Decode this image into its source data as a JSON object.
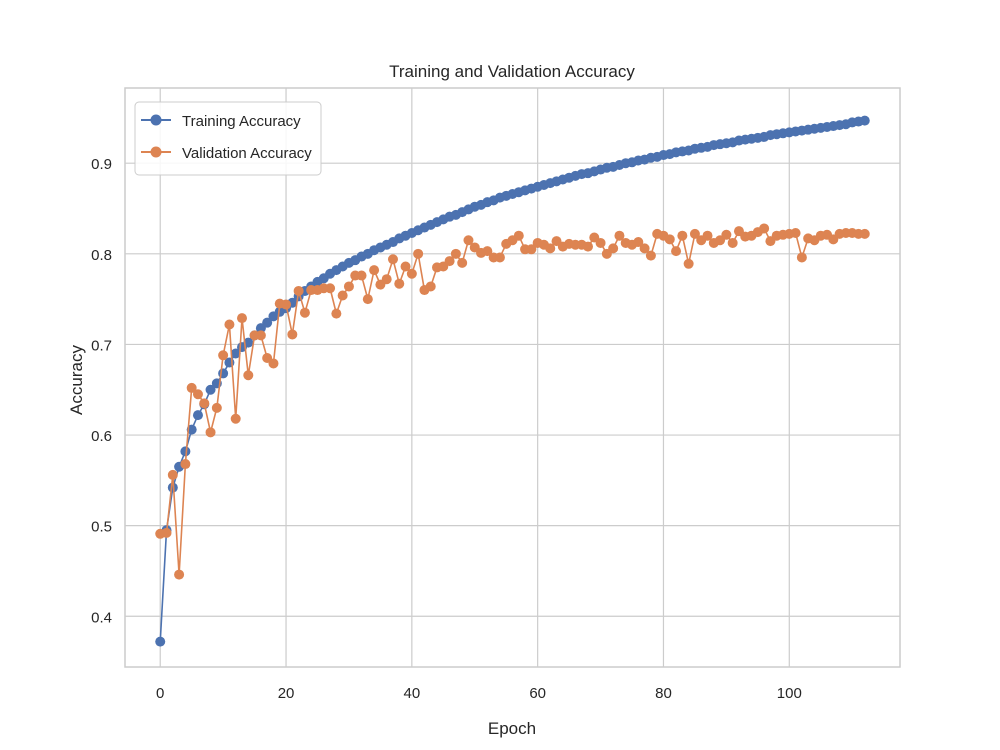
{
  "chart_data": {
    "type": "line",
    "title": "Training and Validation Accuracy",
    "xlabel": "Epoch",
    "ylabel": "Accuracy",
    "xlim": [
      -5.6,
      117.6
    ],
    "ylim": [
      0.344,
      0.983
    ],
    "xticks": [
      0,
      20,
      40,
      60,
      80,
      100
    ],
    "yticks": [
      0.4,
      0.5,
      0.6,
      0.7,
      0.8,
      0.9
    ],
    "grid": true,
    "legend_position": "upper-left",
    "colors": {
      "training": "#4c72b0",
      "validation": "#dd8452",
      "grid": "#cccccc",
      "frame": "#cccccc"
    },
    "series": [
      {
        "name": "Training Accuracy",
        "x": [
          0,
          1,
          2,
          3,
          4,
          5,
          6,
          7,
          8,
          9,
          10,
          11,
          12,
          13,
          14,
          15,
          16,
          17,
          18,
          19,
          20,
          21,
          22,
          23,
          24,
          25,
          26,
          27,
          28,
          29,
          30,
          31,
          32,
          33,
          34,
          35,
          36,
          37,
          38,
          39,
          40,
          41,
          42,
          43,
          44,
          45,
          46,
          47,
          48,
          49,
          50,
          51,
          52,
          53,
          54,
          55,
          56,
          57,
          58,
          59,
          60,
          61,
          62,
          63,
          64,
          65,
          66,
          67,
          68,
          69,
          70,
          71,
          72,
          73,
          74,
          75,
          76,
          77,
          78,
          79,
          80,
          81,
          82,
          83,
          84,
          85,
          86,
          87,
          88,
          89,
          90,
          91,
          92,
          93,
          94,
          95,
          96,
          97,
          98,
          99,
          100,
          101,
          102,
          103,
          104,
          105,
          106,
          107,
          108,
          109,
          110,
          111,
          112
        ],
        "y": [
          0.372,
          0.495,
          0.542,
          0.565,
          0.582,
          0.606,
          0.622,
          0.634,
          0.65,
          0.657,
          0.668,
          0.68,
          0.69,
          0.697,
          0.702,
          0.71,
          0.718,
          0.724,
          0.731,
          0.736,
          0.74,
          0.746,
          0.753,
          0.759,
          0.764,
          0.769,
          0.773,
          0.778,
          0.782,
          0.786,
          0.79,
          0.793,
          0.797,
          0.8,
          0.804,
          0.807,
          0.81,
          0.813,
          0.817,
          0.82,
          0.823,
          0.826,
          0.829,
          0.832,
          0.835,
          0.838,
          0.841,
          0.843,
          0.846,
          0.849,
          0.852,
          0.854,
          0.857,
          0.859,
          0.862,
          0.864,
          0.866,
          0.868,
          0.87,
          0.872,
          0.874,
          0.876,
          0.878,
          0.88,
          0.882,
          0.884,
          0.886,
          0.888,
          0.889,
          0.891,
          0.893,
          0.895,
          0.896,
          0.898,
          0.9,
          0.901,
          0.903,
          0.904,
          0.906,
          0.907,
          0.909,
          0.91,
          0.912,
          0.913,
          0.914,
          0.916,
          0.917,
          0.918,
          0.92,
          0.921,
          0.922,
          0.923,
          0.925,
          0.926,
          0.927,
          0.928,
          0.929,
          0.931,
          0.932,
          0.933,
          0.934,
          0.935,
          0.936,
          0.937,
          0.938,
          0.939,
          0.94,
          0.941,
          0.942,
          0.943,
          0.945,
          0.946,
          0.947
        ]
      },
      {
        "name": "Validation Accuracy",
        "x": [
          0,
          1,
          2,
          3,
          4,
          5,
          6,
          7,
          8,
          9,
          10,
          11,
          12,
          13,
          14,
          15,
          16,
          17,
          18,
          19,
          20,
          21,
          22,
          23,
          24,
          25,
          26,
          27,
          28,
          29,
          30,
          31,
          32,
          33,
          34,
          35,
          36,
          37,
          38,
          39,
          40,
          41,
          42,
          43,
          44,
          45,
          46,
          47,
          48,
          49,
          50,
          51,
          52,
          53,
          54,
          55,
          56,
          57,
          58,
          59,
          60,
          61,
          62,
          63,
          64,
          65,
          66,
          67,
          68,
          69,
          70,
          71,
          72,
          73,
          74,
          75,
          76,
          77,
          78,
          79,
          80,
          81,
          82,
          83,
          84,
          85,
          86,
          87,
          88,
          89,
          90,
          91,
          92,
          93,
          94,
          95,
          96,
          97,
          98,
          99,
          100,
          101,
          102,
          103,
          104,
          105,
          106,
          107,
          108,
          109,
          110,
          111,
          112
        ],
        "y": [
          0.491,
          0.492,
          0.556,
          0.446,
          0.568,
          0.652,
          0.645,
          0.635,
          0.603,
          0.63,
          0.688,
          0.722,
          0.618,
          0.729,
          0.666,
          0.71,
          0.71,
          0.685,
          0.679,
          0.745,
          0.744,
          0.711,
          0.759,
          0.735,
          0.76,
          0.76,
          0.762,
          0.762,
          0.734,
          0.754,
          0.764,
          0.776,
          0.776,
          0.75,
          0.782,
          0.766,
          0.772,
          0.794,
          0.767,
          0.786,
          0.778,
          0.8,
          0.76,
          0.764,
          0.785,
          0.786,
          0.792,
          0.8,
          0.79,
          0.815,
          0.807,
          0.801,
          0.803,
          0.796,
          0.796,
          0.811,
          0.815,
          0.82,
          0.805,
          0.805,
          0.812,
          0.81,
          0.806,
          0.814,
          0.808,
          0.811,
          0.81,
          0.81,
          0.808,
          0.818,
          0.812,
          0.8,
          0.806,
          0.82,
          0.812,
          0.81,
          0.813,
          0.806,
          0.798,
          0.822,
          0.82,
          0.816,
          0.803,
          0.82,
          0.789,
          0.822,
          0.815,
          0.82,
          0.812,
          0.815,
          0.821,
          0.812,
          0.825,
          0.819,
          0.82,
          0.824,
          0.828,
          0.814,
          0.82,
          0.821,
          0.822,
          0.823,
          0.796,
          0.817,
          0.815,
          0.82,
          0.821,
          0.816,
          0.822,
          0.823,
          0.823,
          0.822,
          0.822
        ]
      }
    ]
  }
}
